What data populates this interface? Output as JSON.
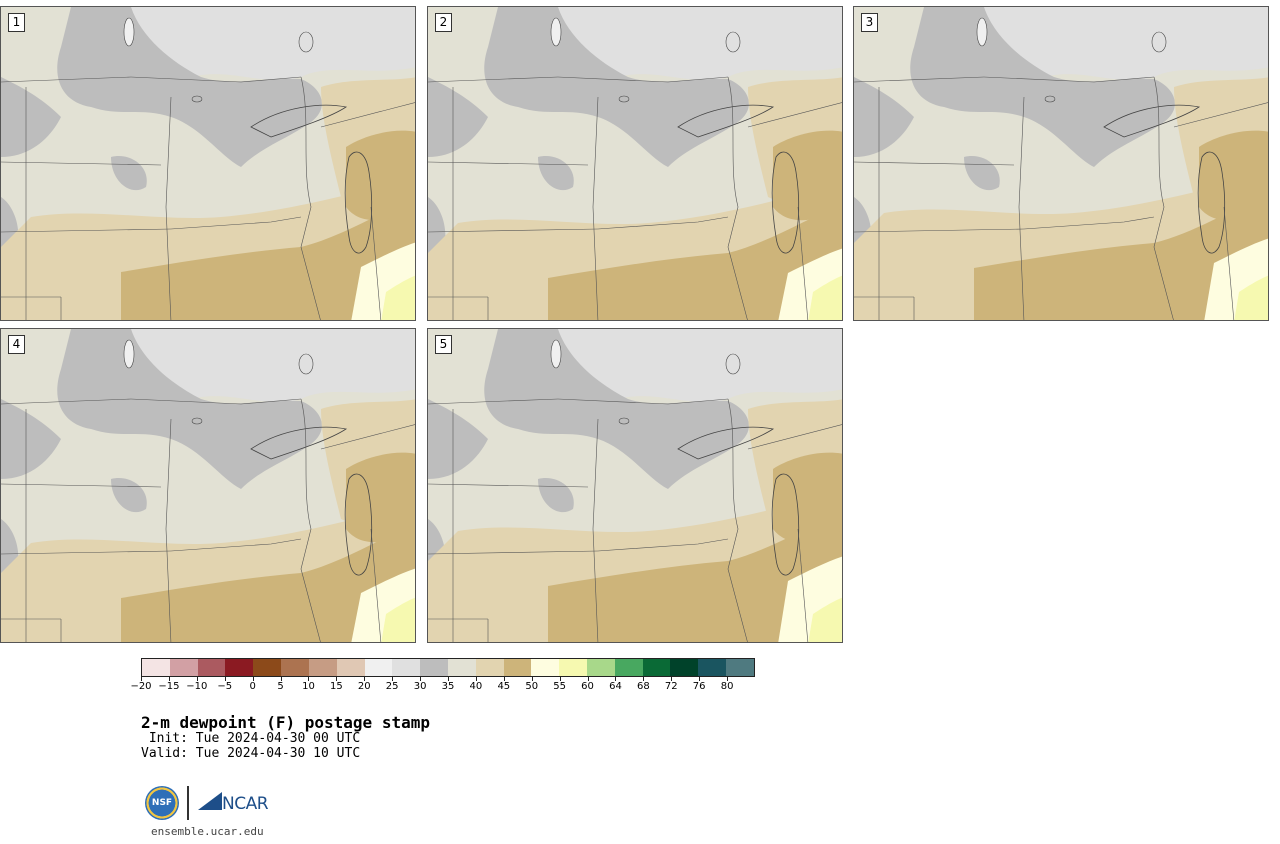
{
  "panels": [
    {
      "label": "1"
    },
    {
      "label": "2"
    },
    {
      "label": "3"
    },
    {
      "label": "4"
    },
    {
      "label": "5"
    }
  ],
  "colorbar": {
    "colors": [
      "#f4e4e4",
      "#d2a0a4",
      "#ab5a60",
      "#8b1a22",
      "#8c4a1a",
      "#ac7350",
      "#c69c84",
      "#e0c8b4",
      "#f0f0f0",
      "#e0e0e0",
      "#bdbdbd",
      "#e2e1d4",
      "#e2d4b0",
      "#cdb47a",
      "#fefde0",
      "#f6f9b0",
      "#a8d88a",
      "#48a860",
      "#0a6a36",
      "#00422a",
      "#1a5560",
      "#4f7a80"
    ],
    "tick_labels": [
      "−20",
      "−15",
      "−10",
      "−5",
      "0",
      "5",
      "10",
      "15",
      "20",
      "25",
      "30",
      "35",
      "40",
      "45",
      "50",
      "55",
      "60",
      "64",
      "68",
      "72",
      "76",
      "80"
    ]
  },
  "title": "2-m dewpoint (F) postage stamp",
  "init": " Init: Tue 2024-04-30 00 UTC",
  "valid": "Valid: Tue 2024-04-30 10 UTC",
  "logos": {
    "nsf": "NSF",
    "ncar": "NCAR"
  },
  "website": "ensemble.ucar.edu"
}
